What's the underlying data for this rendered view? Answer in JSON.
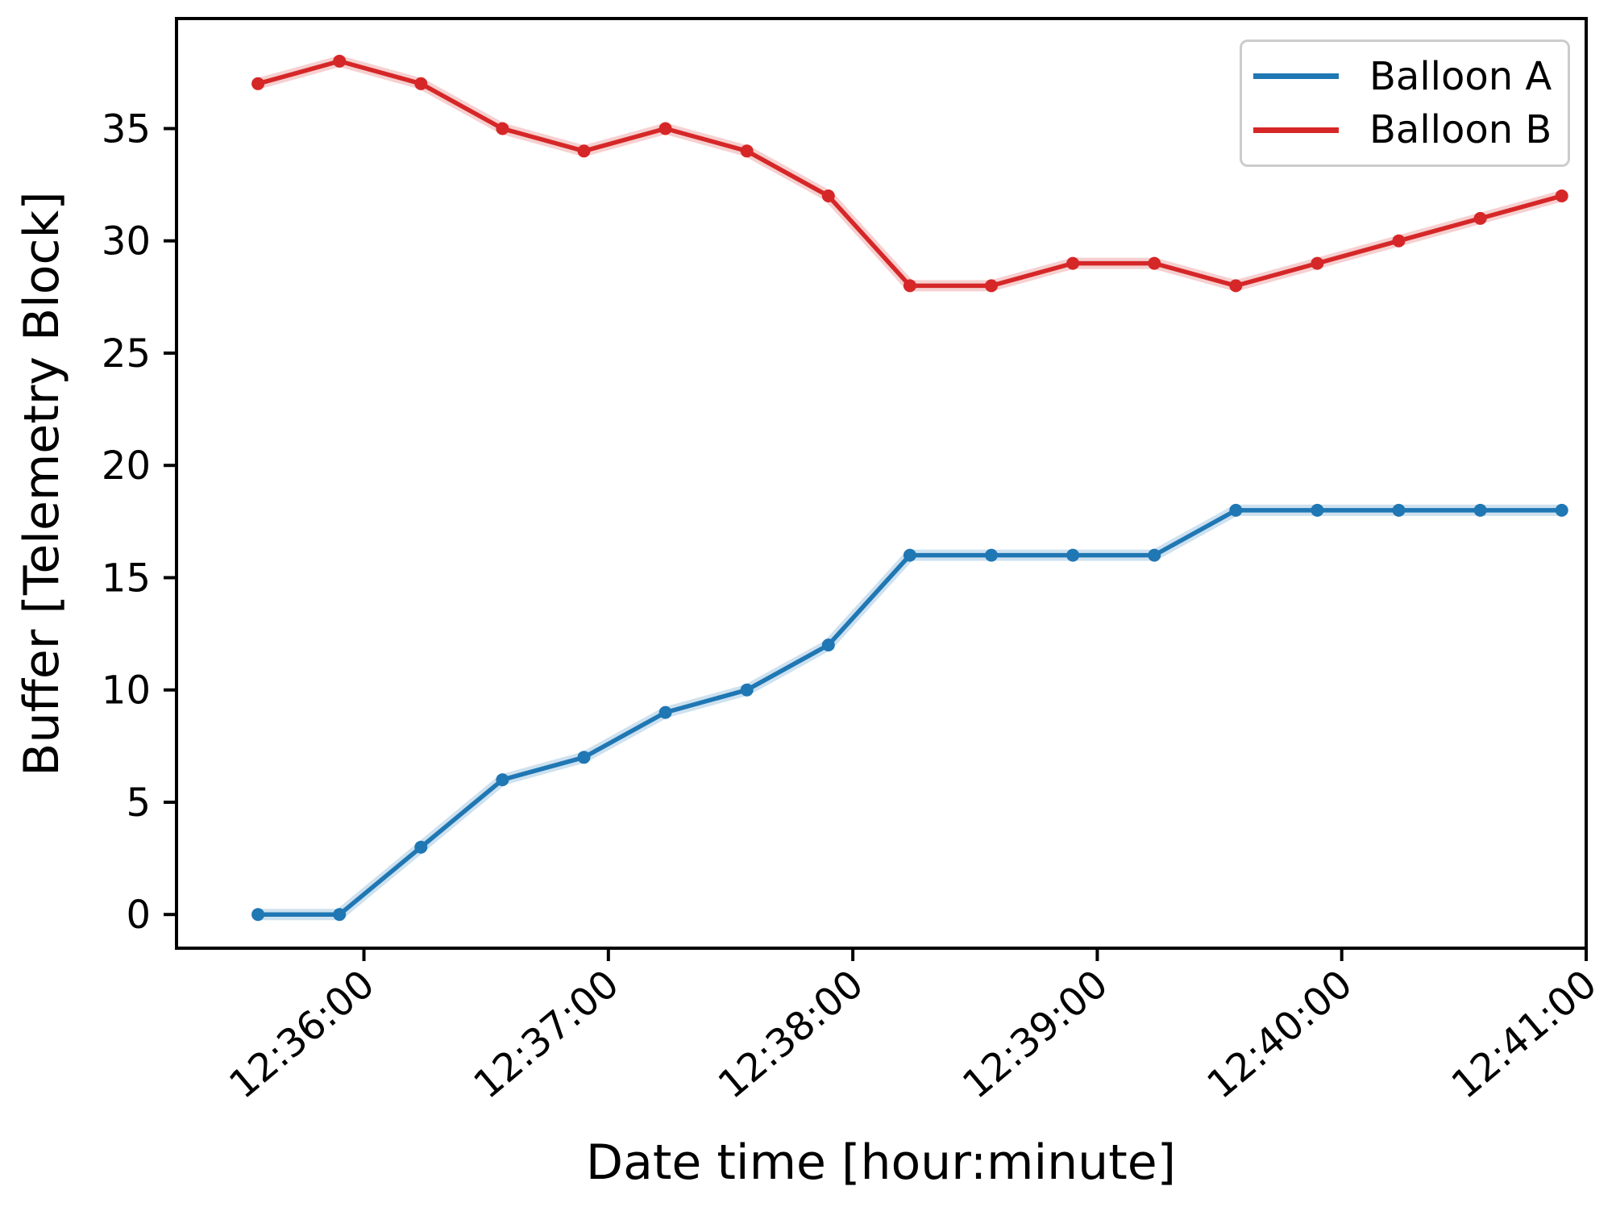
{
  "chart_data": {
    "type": "line",
    "title": "",
    "xlabel": "Date time [hour:minute]",
    "ylabel": "Buffer [Telemetry Block]",
    "x_seconds_relative_to_12_36_00": [
      -26,
      -6,
      14,
      34,
      54,
      74,
      94,
      114,
      134,
      154,
      174,
      194,
      214,
      234,
      254,
      274,
      294
    ],
    "series": [
      {
        "name": "Balloon A",
        "color": "#1f77b4",
        "values": [
          0,
          0,
          3,
          6,
          7,
          9,
          10,
          12,
          16,
          16,
          16,
          16,
          18,
          18,
          18,
          18,
          18
        ]
      },
      {
        "name": "Balloon B",
        "color": "#d62728",
        "values": [
          37,
          38,
          37,
          35,
          34,
          35,
          34,
          32,
          28,
          28,
          29,
          29,
          28,
          29,
          30,
          31,
          32
        ]
      }
    ],
    "x_ticks": [
      {
        "seconds": 0,
        "label": "12:36:00"
      },
      {
        "seconds": 60,
        "label": "12:37:00"
      },
      {
        "seconds": 120,
        "label": "12:38:00"
      },
      {
        "seconds": 180,
        "label": "12:39:00"
      },
      {
        "seconds": 240,
        "label": "12:40:00"
      },
      {
        "seconds": 300,
        "label": "12:41:00"
      }
    ],
    "y_ticks": [
      0,
      5,
      10,
      15,
      20,
      25,
      30,
      35
    ],
    "xlim_seconds": [
      -46,
      300
    ],
    "ylim": [
      -1.5,
      39.9
    ],
    "x_tick_rotation_deg": 40,
    "grid": false,
    "legend_position": "upper right"
  },
  "style": {
    "background": "#ffffff",
    "text_color": "#000000",
    "spine_color": "#000000",
    "legend_border_color": "#cccccc"
  }
}
